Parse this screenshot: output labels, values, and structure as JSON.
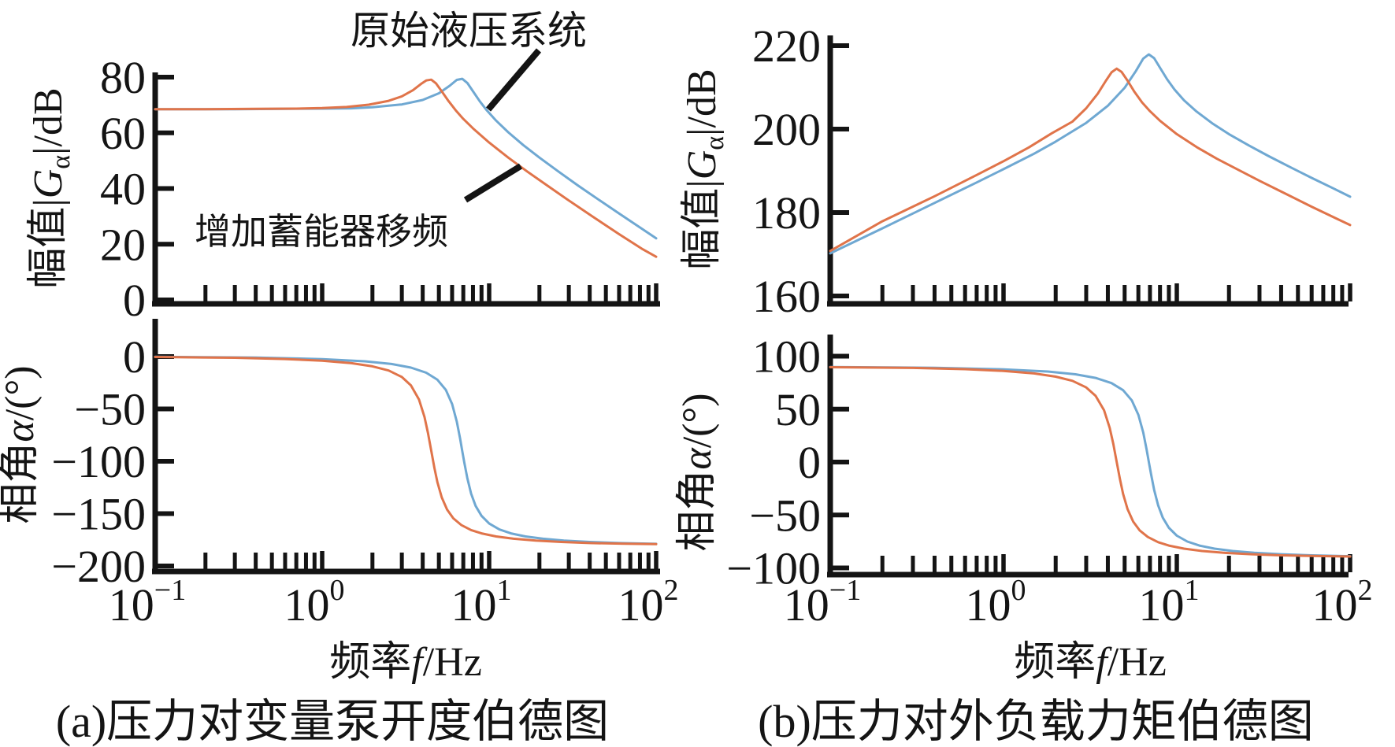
{
  "figure": {
    "background": "#ffffff",
    "axis_color": "#141414",
    "colors": {
      "original_system": "#6FA8D2",
      "accumulator_shifted": "#E0744A"
    }
  },
  "labels": {
    "ylabel_magnitude": {
      "prefix": "幅值|",
      "symbol": "G",
      "subscript": "α",
      "suffix": "|/dB"
    },
    "ylabel_phase": {
      "prefix": "相角",
      "symbol": "α",
      "suffix": "/(°)"
    },
    "xlabel": {
      "prefix": "频率",
      "symbol": "f",
      "suffix": "/Hz"
    },
    "caption_a": "(a)压力对变量泵开度伯德图",
    "caption_b": "(b)压力对外负载力矩伯德图",
    "annotation_original": "原始液压系统",
    "annotation_shifted": "增加蓄能器移频"
  },
  "x_axis": {
    "scale": "log",
    "min_hz": 0.1,
    "max_hz": 100,
    "tick_base": "10",
    "tick_exponents": [
      "-1",
      "0",
      "1",
      "2"
    ],
    "minor_ticks_per_decade": [
      2,
      3,
      4,
      5,
      6,
      7,
      8,
      9
    ]
  },
  "chart_data": [
    {
      "id": "a-mag",
      "type": "line",
      "panel": "a",
      "quantity": "magnitude",
      "title": "(a)压力对变量泵开度伯德图 — 幅值",
      "xlabel": "频率f/Hz",
      "ylabel": "幅值|Gα|/dB",
      "x_scale": "log",
      "xlim": [
        0.1,
        100
      ],
      "ylim": [
        0,
        83
      ],
      "yticks": [
        0,
        20,
        40,
        60,
        80
      ],
      "grid": false,
      "series": [
        {
          "name": "原始液压系统",
          "color": "original_system",
          "points": [
            [
              0.1,
              68.5
            ],
            [
              0.3,
              68.5
            ],
            [
              0.6,
              68.6
            ],
            [
              1,
              68.7
            ],
            [
              1.5,
              68.8
            ],
            [
              2,
              69.2
            ],
            [
              3,
              70.2
            ],
            [
              4,
              71.8
            ],
            [
              5,
              74.2
            ],
            [
              5.8,
              76.9
            ],
            [
              6.4,
              79.0
            ],
            [
              6.9,
              79.4
            ],
            [
              7.4,
              77.9
            ],
            [
              8,
              74.9
            ],
            [
              8.8,
              71.3
            ],
            [
              9.7,
              68.0
            ],
            [
              11,
              64.4
            ],
            [
              13,
              60.2
            ],
            [
              16,
              55.6
            ],
            [
              20,
              51.1
            ],
            [
              26,
              46.1
            ],
            [
              34,
              41.1
            ],
            [
              45,
              36.1
            ],
            [
              60,
              31.0
            ],
            [
              80,
              26.0
            ],
            [
              100,
              22.1
            ]
          ]
        },
        {
          "name": "增加蓄能器移频",
          "color": "accumulator_shifted",
          "points": [
            [
              0.1,
              68.5
            ],
            [
              0.2,
              68.5
            ],
            [
              0.4,
              68.6
            ],
            [
              0.7,
              68.7
            ],
            [
              1,
              68.9
            ],
            [
              1.4,
              69.3
            ],
            [
              1.9,
              70.1
            ],
            [
              2.5,
              71.5
            ],
            [
              3,
              73.1
            ],
            [
              3.5,
              75.3
            ],
            [
              3.9,
              77.5
            ],
            [
              4.2,
              78.8
            ],
            [
              4.5,
              79.1
            ],
            [
              4.8,
              77.8
            ],
            [
              5.2,
              74.9
            ],
            [
              5.7,
              71.5
            ],
            [
              6.3,
              68.1
            ],
            [
              7,
              65.0
            ],
            [
              8,
              61.6
            ],
            [
              10,
              56.5
            ],
            [
              13,
              51.1
            ],
            [
              17,
              46.0
            ],
            [
              22,
              41.3
            ],
            [
              30,
              35.7
            ],
            [
              42,
              29.8
            ],
            [
              60,
              23.6
            ],
            [
              82,
              18.4
            ],
            [
              100,
              15.5
            ]
          ]
        }
      ]
    },
    {
      "id": "a-ph",
      "type": "line",
      "panel": "a",
      "quantity": "phase",
      "title": "(a)压力对变量泵开度伯德图 — 相角",
      "xlabel": "频率f/Hz",
      "ylabel": "相角α/(°)",
      "x_scale": "log",
      "xlim": [
        0.1,
        100
      ],
      "ylim": [
        -205,
        17
      ],
      "yticks": [
        0,
        -50,
        -100,
        -150,
        -200
      ],
      "grid": false,
      "series": [
        {
          "name": "原始液压系统",
          "color": "original_system",
          "points": [
            [
              0.1,
              -0.2
            ],
            [
              0.4,
              -0.9
            ],
            [
              1,
              -2.4
            ],
            [
              1.8,
              -4.5
            ],
            [
              2.6,
              -7.1
            ],
            [
              3.4,
              -10.5
            ],
            [
              4.2,
              -15.4
            ],
            [
              4.9,
              -22.1
            ],
            [
              5.5,
              -31.8
            ],
            [
              6,
              -45.4
            ],
            [
              6.4,
              -62.1
            ],
            [
              6.7,
              -78.3
            ],
            [
              6.9,
              -90
            ],
            [
              7.1,
              -101.4
            ],
            [
              7.4,
              -116.2
            ],
            [
              7.8,
              -130.9
            ],
            [
              8.3,
              -142.6
            ],
            [
              9,
              -152.1
            ],
            [
              10,
              -159.5
            ],
            [
              11.5,
              -165.1
            ],
            [
              13.5,
              -168.9
            ],
            [
              16.5,
              -171.8
            ],
            [
              21,
              -174.0
            ],
            [
              28,
              -175.7
            ],
            [
              40,
              -177.1
            ],
            [
              60,
              -178.1
            ],
            [
              100,
              -178.9
            ]
          ]
        },
        {
          "name": "增加蓄能器移频",
          "color": "accumulator_shifted",
          "points": [
            [
              0.1,
              -0.4
            ],
            [
              0.3,
              -1.1
            ],
            [
              0.6,
              -2.3
            ],
            [
              1,
              -3.9
            ],
            [
              1.5,
              -6.3
            ],
            [
              2,
              -9.3
            ],
            [
              2.5,
              -13.3
            ],
            [
              3,
              -19.5
            ],
            [
              3.4,
              -27.5
            ],
            [
              3.8,
              -41
            ],
            [
              4.1,
              -57.7
            ],
            [
              4.3,
              -72.9
            ],
            [
              4.5,
              -90
            ],
            [
              4.7,
              -106.4
            ],
            [
              4.9,
              -120
            ],
            [
              5.2,
              -134.5
            ],
            [
              5.6,
              -146.2
            ],
            [
              6.1,
              -154.5
            ],
            [
              6.8,
              -160.8
            ],
            [
              7.8,
              -165.7
            ],
            [
              9,
              -168.9
            ],
            [
              11,
              -171.8
            ],
            [
              14,
              -174.0
            ],
            [
              19,
              -175.8
            ],
            [
              27,
              -177.1
            ],
            [
              40,
              -178.1
            ],
            [
              65,
              -178.8
            ],
            [
              100,
              -179.2
            ]
          ]
        }
      ]
    },
    {
      "id": "b-mag",
      "type": "line",
      "panel": "b",
      "quantity": "magnitude",
      "title": "(b)压力对外负载力矩伯德图 — 幅值",
      "xlabel": "频率f/Hz",
      "ylabel": "幅值|Gα|/dB",
      "x_scale": "log",
      "xlim": [
        0.1,
        100
      ],
      "ylim": [
        160,
        224
      ],
      "yticks": [
        160,
        180,
        200,
        220
      ],
      "grid": false,
      "series": [
        {
          "name": "原始液压系统",
          "color": "original_system",
          "points": [
            [
              0.1,
              170.2
            ],
            [
              0.2,
              176.2
            ],
            [
              0.4,
              182.3
            ],
            [
              0.7,
              187.2
            ],
            [
              1,
              190.4
            ],
            [
              1.5,
              194.1
            ],
            [
              2,
              197.0
            ],
            [
              3,
              201.5
            ],
            [
              4,
              205.6
            ],
            [
              5,
              209.9
            ],
            [
              5.8,
              213.9
            ],
            [
              6.4,
              216.9
            ],
            [
              6.9,
              217.9
            ],
            [
              7.4,
              217.0
            ],
            [
              8,
              214.7
            ],
            [
              8.8,
              211.9
            ],
            [
              9.7,
              209.5
            ],
            [
              11,
              206.9
            ],
            [
              13,
              204.2
            ],
            [
              16,
              201.4
            ],
            [
              20,
              198.8
            ],
            [
              26,
              196.1
            ],
            [
              34,
              193.5
            ],
            [
              45,
              190.9
            ],
            [
              60,
              188.3
            ],
            [
              80,
              185.8
            ],
            [
              100,
              183.8
            ]
          ]
        },
        {
          "name": "增加蓄能器移频",
          "color": "accumulator_shifted",
          "points": [
            [
              0.1,
              170.8
            ],
            [
              0.2,
              177.9
            ],
            [
              0.4,
              183.9
            ],
            [
              0.7,
              189.0
            ],
            [
              1,
              192.3
            ],
            [
              1.4,
              195.6
            ],
            [
              1.9,
              199.0
            ],
            [
              2.5,
              201.8
            ],
            [
              3,
              205.0
            ],
            [
              3.5,
              208.5
            ],
            [
              3.9,
              211.6
            ],
            [
              4.2,
              213.6
            ],
            [
              4.5,
              214.5
            ],
            [
              4.8,
              213.7
            ],
            [
              5.2,
              211.6
            ],
            [
              5.7,
              208.9
            ],
            [
              6.3,
              206.4
            ],
            [
              7,
              204.3
            ],
            [
              8,
              202.0
            ],
            [
              10,
              198.8
            ],
            [
              13,
              195.7
            ],
            [
              17,
              192.9
            ],
            [
              22,
              190.5
            ],
            [
              30,
              187.6
            ],
            [
              42,
              184.6
            ],
            [
              60,
              181.4
            ],
            [
              82,
              178.7
            ],
            [
              100,
              177.0
            ]
          ]
        }
      ]
    },
    {
      "id": "b-ph",
      "type": "line",
      "panel": "b",
      "quantity": "phase",
      "title": "(b)压力对外负载力矩伯德图 — 相角",
      "xlabel": "频率f/Hz",
      "ylabel": "相角α/(°)",
      "x_scale": "log",
      "xlim": [
        0.1,
        100
      ],
      "ylim": [
        -107,
        120
      ],
      "yticks": [
        100,
        50,
        0,
        -50,
        -100
      ],
      "grid": false,
      "series": [
        {
          "name": "原始液压系统",
          "color": "original_system",
          "points": [
            [
              0.1,
              89.8
            ],
            [
              0.4,
              89.1
            ],
            [
              1,
              87.6
            ],
            [
              1.8,
              85.5
            ],
            [
              2.6,
              82.9
            ],
            [
              3.4,
              79.5
            ],
            [
              4.2,
              74.6
            ],
            [
              4.9,
              67.9
            ],
            [
              5.5,
              58.2
            ],
            [
              6,
              44.6
            ],
            [
              6.4,
              27.9
            ],
            [
              6.7,
              11.7
            ],
            [
              6.9,
              0
            ],
            [
              7.1,
              -11.4
            ],
            [
              7.4,
              -26.2
            ],
            [
              7.8,
              -40.9
            ],
            [
              8.3,
              -52.6
            ],
            [
              9,
              -62.1
            ],
            [
              10,
              -69.5
            ],
            [
              11.5,
              -75.1
            ],
            [
              13.5,
              -78.9
            ],
            [
              16.5,
              -81.8
            ],
            [
              21,
              -84.0
            ],
            [
              28,
              -85.7
            ],
            [
              40,
              -87.1
            ],
            [
              60,
              -88.1
            ],
            [
              100,
              -88.9
            ]
          ]
        },
        {
          "name": "增加蓄能器移频",
          "color": "accumulator_shifted",
          "points": [
            [
              0.1,
              89.6
            ],
            [
              0.3,
              88.9
            ],
            [
              0.6,
              87.7
            ],
            [
              1,
              86.1
            ],
            [
              1.5,
              83.7
            ],
            [
              2,
              80.7
            ],
            [
              2.5,
              76.7
            ],
            [
              3,
              70.5
            ],
            [
              3.4,
              62.5
            ],
            [
              3.8,
              49.0
            ],
            [
              4.1,
              32.3
            ],
            [
              4.3,
              17.1
            ],
            [
              4.5,
              0
            ],
            [
              4.7,
              -16.4
            ],
            [
              4.9,
              -30.0
            ],
            [
              5.2,
              -44.5
            ],
            [
              5.6,
              -56.2
            ],
            [
              6.1,
              -64.5
            ],
            [
              6.8,
              -70.8
            ],
            [
              7.8,
              -75.7
            ],
            [
              9,
              -78.9
            ],
            [
              11,
              -81.8
            ],
            [
              14,
              -84.0
            ],
            [
              19,
              -85.8
            ],
            [
              27,
              -87.1
            ],
            [
              40,
              -88.1
            ],
            [
              65,
              -88.8
            ],
            [
              100,
              -89.2
            ]
          ]
        }
      ]
    }
  ]
}
